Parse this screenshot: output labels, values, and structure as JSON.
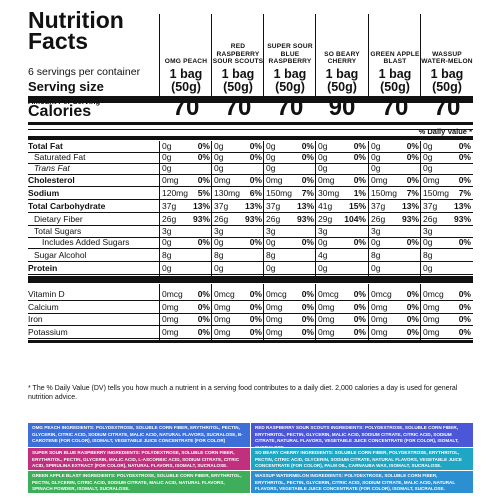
{
  "title": "Nutrition Facts",
  "servings_per_container": "6 servings per container",
  "serving_size_label": "Serving size",
  "flavors": [
    {
      "name": "OMG PEACH"
    },
    {
      "name": "RED RASPBERRY SOUR SCOUTS"
    },
    {
      "name": "SUPER SOUR BLUE RASPBERRY"
    },
    {
      "name": "SO BEARY CHERRY"
    },
    {
      "name": "GREEN APPLE BLAST"
    },
    {
      "name": "WASSUP WATER-MELON"
    }
  ],
  "serving_size_value": "1 bag (50g)",
  "amount_per_serving": "Amount Per Serving",
  "calories_label": "Calories",
  "calories": [
    "70",
    "70",
    "70",
    "90",
    "70",
    "70"
  ],
  "daily_value_header": "% Daily Value *",
  "rows": [
    {
      "label": "Total Fat",
      "style": "bold",
      "amounts": [
        "0g",
        "0g",
        "0g",
        "0g",
        "0g",
        "0g"
      ],
      "dvs": [
        "0%",
        "0%",
        "0%",
        "0%",
        "0%",
        "0%"
      ]
    },
    {
      "label": "Saturated Fat",
      "style": "ind1",
      "amounts": [
        "0g",
        "0g",
        "0g",
        "0g",
        "0g",
        "0g"
      ],
      "dvs": [
        "0%",
        "0%",
        "0%",
        "0%",
        "0%",
        "0%"
      ]
    },
    {
      "label": "Trans Fat",
      "style": "ind1 it",
      "amounts": [
        "0g",
        "0g",
        "0g",
        "0g",
        "0g",
        "0g"
      ],
      "dvs": [
        "",
        "",
        "",
        "",
        "",
        ""
      ]
    },
    {
      "label": "Cholesterol",
      "style": "bold",
      "amounts": [
        "0mg",
        "0mg",
        "0mg",
        "0mg",
        "0mg",
        "0mg"
      ],
      "dvs": [
        "0%",
        "0%",
        "0%",
        "0%",
        "0%",
        "0%"
      ]
    },
    {
      "label": "Sodium",
      "style": "bold",
      "amounts": [
        "120mg",
        "130mg",
        "150mg",
        "30mg",
        "150mg",
        "150mg"
      ],
      "dvs": [
        "5%",
        "6%",
        "7%",
        "1%",
        "7%",
        "7%"
      ]
    },
    {
      "label": "Total Carbohydrate",
      "style": "bold",
      "amounts": [
        "37g",
        "37g",
        "37g",
        "41g",
        "37g",
        "37g"
      ],
      "dvs": [
        "13%",
        "13%",
        "13%",
        "15%",
        "13%",
        "13%"
      ]
    },
    {
      "label": "Dietary Fiber",
      "style": "ind1",
      "amounts": [
        "26g",
        "26g",
        "26g",
        "29g",
        "26g",
        "26g"
      ],
      "dvs": [
        "93%",
        "93%",
        "93%",
        "104%",
        "93%",
        "93%"
      ]
    },
    {
      "label": "Total Sugars",
      "style": "ind1",
      "amounts": [
        "3g",
        "3g",
        "3g",
        "3g",
        "3g",
        "3g"
      ],
      "dvs": [
        "",
        "",
        "",
        "",
        "",
        ""
      ]
    },
    {
      "label": "Includes Added Sugars",
      "style": "ind2",
      "amounts": [
        "0g",
        "0g",
        "0g",
        "0g",
        "0g",
        "0g"
      ],
      "dvs": [
        "0%",
        "0%",
        "0%",
        "0%",
        "0%",
        "0%"
      ]
    },
    {
      "label": "Sugar Alcohol",
      "style": "ind1",
      "amounts": [
        "8g",
        "8g",
        "8g",
        "4g",
        "8g",
        "8g"
      ],
      "dvs": [
        "",
        "",
        "",
        "",
        "",
        ""
      ]
    },
    {
      "label": "Protein",
      "style": "bold",
      "amounts": [
        "0g",
        "0g",
        "0g",
        "0g",
        "0g",
        "0g"
      ],
      "dvs": [
        "",
        "",
        "",
        "",
        "",
        ""
      ]
    },
    {
      "label": "Vitamin D",
      "style": "",
      "amounts": [
        "0mcg",
        "0mcg",
        "0mcg",
        "0mcg",
        "0mcg",
        "0mcg"
      ],
      "dvs": [
        "0%",
        "0%",
        "0%",
        "0%",
        "0%",
        "0%"
      ]
    },
    {
      "label": "Calcium",
      "style": "",
      "amounts": [
        "0mg",
        "0mg",
        "0mg",
        "0mg",
        "0mg",
        "0mg"
      ],
      "dvs": [
        "0%",
        "0%",
        "0%",
        "0%",
        "0%",
        "0%"
      ]
    },
    {
      "label": "Iron",
      "style": "",
      "amounts": [
        "0mg",
        "0mg",
        "0mg",
        "0mg",
        "0mg",
        "0mg"
      ],
      "dvs": [
        "0%",
        "0%",
        "0%",
        "0%",
        "0%",
        "0%"
      ]
    },
    {
      "label": "Potassium",
      "style": "",
      "amounts": [
        "0mg",
        "0mg",
        "0mg",
        "0mg",
        "0mg",
        "0mg"
      ],
      "dvs": [
        "0%",
        "0%",
        "0%",
        "0%",
        "0%",
        "0%"
      ]
    }
  ],
  "footnote": "* The % Daily Value (DV) tells you how much a nutrient in a serving food contributes to a daily diet. 2,000 calories a day is used for general nutrition advice.",
  "ingredients": [
    {
      "title": "OMG PEACH INGREDIENTS:",
      "text": "POLYDEXTROSE, SOLUBLE CORN FIBER, ERYTHRITOL, PECTIN, GLYCERIN, CITRIC ACID, SODIUM CITRATE, MALIC ACID, NATURAL FLAVORS, SUCRALOSE, β-CAROTENE (FOR COLOR), ISOMALT, VEGETABLE JUICE CONCENTRATE (FOR COLOR)",
      "color": "#3d6fd8"
    },
    {
      "title": "RED RASPBERRY SOUR SCOUTS INGREDIENTS:",
      "text": "POLYDEXTROSE, SOLUBLE CORN FIBER, ERYTHRITOL, PECTIN, GLYCERIN, MALIC ACID, SODIUM CITRATE, CITRIC ACID, SODIUM CITRATE, NATURAL FLAVORS, VEGETABLE JUICE CONCENTRATE (FOR COLOR), ISOMALT, SUCRALOSE.",
      "color": "#4b57d6"
    },
    {
      "title": "SUPER SOUR BLUE RASPBERRY INGREDIENTS:",
      "text": "POLYDEXTROSE, SOLUBLE CORN FIBER, ERYTHRITOL, PECTIN, GLYCERIN, MALIC ACID, L-ASCORBIC ACID, SODIUM CITRATE, CITRIC ACID, SPIRULINA EXTRACT (FOR COLOR), NATURAL FLAVORS, ISOMALT, SUCRALOSE.",
      "color": "#c0307e"
    },
    {
      "title": "SO BEARY CHERRY INGREDIENTS:",
      "text": "SOLUBLE CORN FIBER, POLYDEXTROSE, ERYTHRITOL, PECTIN, CITRIC ACID, GLYCERIN, SODIUM CITRATE, NATURAL FLAVORS, VEGETABLE JUICE CONCENTRATE (FOR COLOR), PALM OIL, CARNAUBA WAX, ISOMALT, SUCRALOSE.",
      "color": "#1ea6c4"
    },
    {
      "title": "GREEN APPLE BLAST INGREDIENTS:",
      "text": "POLYDEXTROSE, SOLUBLE CORN FIBER, ERYTHRITOL, PECTIN, GLYCERIN, CITRIC ACID, SODIUM CITRATE, MALIC ACID, NATURAL FLAVORS, SPINACH POWDER, ISOMALT, SUCRALOSE.",
      "color": "#3fae5a"
    },
    {
      "title": "WASSUP WATERMELON INGREDIENTS:",
      "text": "POLYDEXTROSE, SOLUBLE CORN FIBER, ERYTHRITOL, PECTIN, GLYCERIN, CITRIC ACID, SODIUM CITRATE, MALIC ACID, NATURAL FLAVORS, VEGETABLE JUICE CONCENTRATE (FOR COLOR), ISOMALT, SUCRALOSE.",
      "color": "#2c8fd1"
    }
  ]
}
